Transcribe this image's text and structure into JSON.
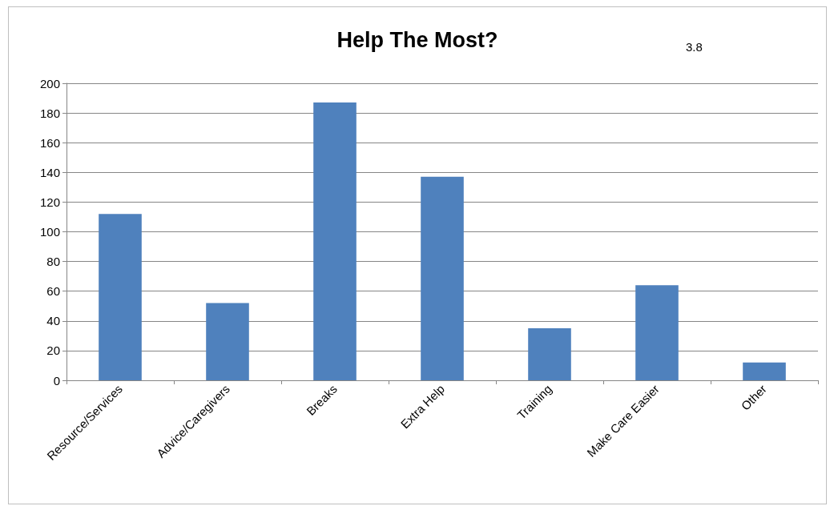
{
  "chart_data": {
    "type": "bar",
    "title": "Help The Most?",
    "annotations": [
      "3.8"
    ],
    "categories": [
      "Resource/Services",
      "Advice/Caregivers",
      "Breaks",
      "Extra Help",
      "Training",
      "Make Care Easier",
      "Other"
    ],
    "values": [
      112,
      52,
      187,
      137,
      35,
      64,
      12
    ],
    "color": "#4f81bd",
    "ylim": [
      0,
      200
    ],
    "yticks": [
      0,
      20,
      40,
      60,
      80,
      100,
      120,
      140,
      160,
      180,
      200
    ],
    "grid": "y"
  }
}
